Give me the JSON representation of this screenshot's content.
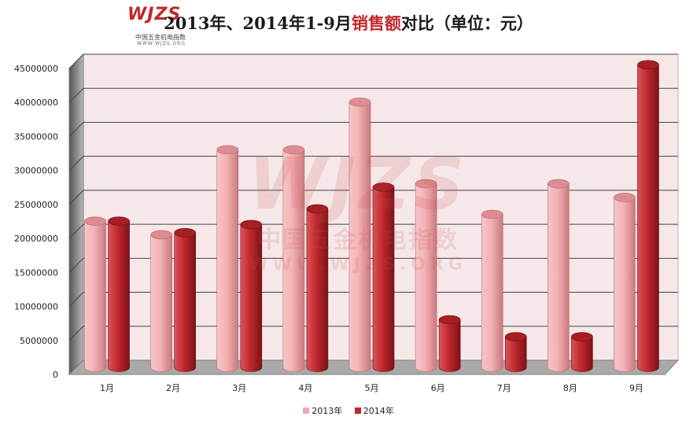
{
  "logo": {
    "mark": "WJZS",
    "cn": "中国五金机电指数",
    "url": "WWW.WJZS.ORG"
  },
  "watermark": {
    "mark": "WJZS",
    "cn": "中国五金机电指数",
    "url": "WWW.WJZS.ORG"
  },
  "chart_data": {
    "type": "bar",
    "title_parts": {
      "prefix": "2013年、2014年1-9月",
      "highlight": "销售额",
      "suffix": "对比（单位：元）"
    },
    "categories": [
      "1月",
      "2月",
      "3月",
      "4月",
      "5月",
      "6月",
      "7月",
      "8月",
      "9月"
    ],
    "series": [
      {
        "name": "2013年",
        "color": "#f0a8ac",
        "values": [
          21500000,
          19500000,
          32000000,
          32000000,
          39000000,
          27000000,
          22500000,
          27000000,
          25000000
        ]
      },
      {
        "name": "2014年",
        "color": "#c0282d",
        "values": [
          21500000,
          19800000,
          21000000,
          23300000,
          26500000,
          7000000,
          4500000,
          4500000,
          44500000
        ]
      }
    ],
    "yticks": [
      "0",
      "5000000",
      "10000000",
      "15000000",
      "20000000",
      "25000000",
      "30000000",
      "35000000",
      "40000000",
      "45000000"
    ],
    "ylim": [
      0,
      45000000
    ],
    "grid": true,
    "legend": "bottom"
  }
}
